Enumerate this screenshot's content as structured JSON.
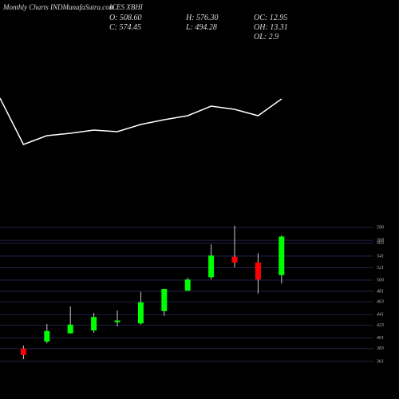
{
  "header": {
    "title": "Monthly Charts INDMunafaSutra.com",
    "symbol": "ICES XBHI",
    "info": [
      "O: 508.60",
      "H: 576.30",
      "OC: 12.95",
      "C: 574.45",
      "L: 494.28",
      "OH: 13.31",
      "OL: 2.9"
    ]
  },
  "chart_data": [
    {
      "type": "line",
      "color": "#ffffff",
      "categories": [
        null,
        null,
        null,
        null,
        null,
        null,
        null,
        null,
        null,
        null,
        null,
        null,
        null
      ],
      "values": [
        77,
        19,
        30,
        33,
        37,
        35,
        44,
        50,
        55,
        67,
        63,
        55,
        76
      ],
      "ylim": [
        0,
        100
      ]
    },
    {
      "type": "candlestick",
      "up_color": "#00ff00",
      "down_color": "#ff0000",
      "grid": true,
      "grid_color": "#2a2a5a",
      "categories": [
        null,
        null,
        null,
        null,
        null,
        null,
        null,
        null,
        null,
        null,
        null,
        null
      ],
      "open": [
        383,
        395,
        409,
        414,
        428,
        426,
        447,
        482,
        505,
        540,
        530,
        508.6
      ],
      "high": [
        388,
        425,
        455,
        444,
        448,
        480,
        485,
        504,
        561,
        593,
        546,
        576.3
      ],
      "low": [
        365,
        392,
        409,
        410,
        421,
        424,
        439,
        482,
        501,
        522,
        477,
        494.28
      ],
      "close": [
        372,
        413,
        424,
        437,
        431,
        462,
        485,
        501,
        542,
        530,
        501,
        574.45
      ],
      "ylim": [
        350,
        600
      ],
      "yticks": [
        590,
        568,
        563,
        541,
        521,
        500,
        481,
        463,
        441,
        423,
        401,
        383,
        361
      ]
    }
  ]
}
